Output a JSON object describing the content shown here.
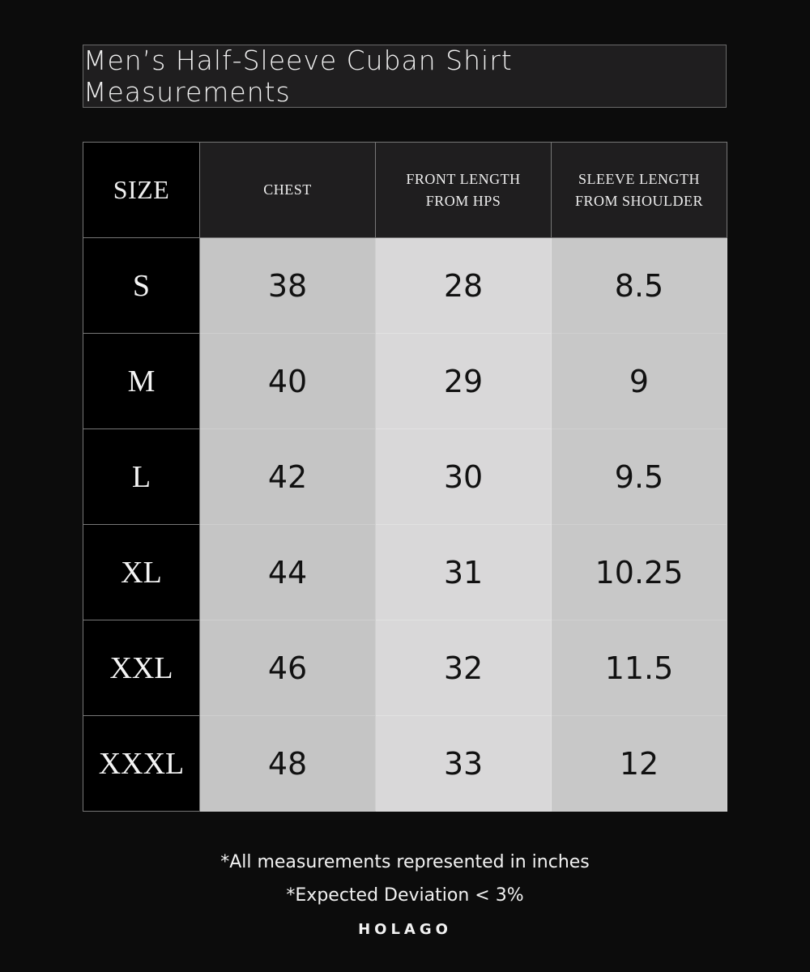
{
  "title": "Men’s Half-Sleeve Cuban Shirt Measurements",
  "table": {
    "headers": [
      "SIZE",
      "CHEST",
      "FRONT LENGTH FROM HPS",
      "SLEEVE LENGTH FROM SHOULDER"
    ],
    "rows": [
      {
        "size": "S",
        "chest": "38",
        "front_length": "28",
        "sleeve_length": "8.5"
      },
      {
        "size": "M",
        "chest": "40",
        "front_length": "29",
        "sleeve_length": "9"
      },
      {
        "size": "L",
        "chest": "42",
        "front_length": "30",
        "sleeve_length": "9.5"
      },
      {
        "size": "XL",
        "chest": "44",
        "front_length": "31",
        "sleeve_length": "10.25"
      },
      {
        "size": "XXL",
        "chest": "46",
        "front_length": "32",
        "sleeve_length": "11.5"
      },
      {
        "size": "XXXL",
        "chest": "48",
        "front_length": "33",
        "sleeve_length": "12"
      }
    ]
  },
  "notes": [
    "*All measurements represented in inches",
    "*Expected Deviation < 3%"
  ],
  "brand": "HOLAGO",
  "colors": {
    "background": "#0c0c0c",
    "header": "#1f1e1f",
    "chest_col": "#c5c5c5",
    "front_col": "#d9d8d9",
    "sleeve_col": "#c8c8c8"
  }
}
